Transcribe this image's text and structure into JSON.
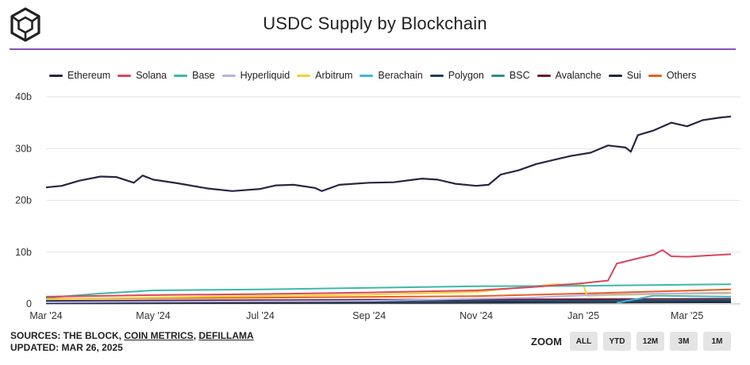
{
  "header": {
    "title": "USDC Supply by Blockchain"
  },
  "footer": {
    "sources_prefix": "SOURCES: THE BLOCK, ",
    "source_coinmetrics": "COIN METRICS",
    "source_sep": ", ",
    "source_defillama": "DEFILLAMA",
    "updated": "UPDATED: MAR 26, 2025"
  },
  "zoom": {
    "label": "ZOOM",
    "buttons": [
      "ALL",
      "YTD",
      "12M",
      "3M",
      "1M"
    ]
  },
  "chart_data": {
    "type": "line",
    "title": "USDC Supply by Blockchain",
    "xlabel": "",
    "ylabel": "",
    "x_ticks": [
      "Mar '24",
      "May '24",
      "Jul '24",
      "Sep '24",
      "Nov '24",
      "Jan '25",
      "Mar '25"
    ],
    "y_ticks": [
      "0",
      "10b",
      "20b",
      "30b",
      "40b"
    ],
    "ylim": [
      0,
      40
    ],
    "xlim": [
      "2024-03-01",
      "2025-03-26"
    ],
    "grid": true,
    "legend_position": "top",
    "series": [
      {
        "name": "Ethereum",
        "color": "#262645",
        "points": [
          [
            "2024-03-01",
            22.5
          ],
          [
            "2024-03-10",
            22.8
          ],
          [
            "2024-03-20",
            23.8
          ],
          [
            "2024-04-01",
            24.6
          ],
          [
            "2024-04-10",
            24.5
          ],
          [
            "2024-04-20",
            23.4
          ],
          [
            "2024-04-25",
            24.8
          ],
          [
            "2024-05-01",
            24.0
          ],
          [
            "2024-05-15",
            23.3
          ],
          [
            "2024-06-01",
            22.3
          ],
          [
            "2024-06-15",
            21.8
          ],
          [
            "2024-07-01",
            22.2
          ],
          [
            "2024-07-10",
            22.9
          ],
          [
            "2024-07-20",
            23.0
          ],
          [
            "2024-08-01",
            22.4
          ],
          [
            "2024-08-05",
            21.8
          ],
          [
            "2024-08-15",
            23.0
          ],
          [
            "2024-09-01",
            23.4
          ],
          [
            "2024-09-15",
            23.5
          ],
          [
            "2024-10-01",
            24.2
          ],
          [
            "2024-10-10",
            24.0
          ],
          [
            "2024-10-20",
            23.2
          ],
          [
            "2024-11-01",
            22.8
          ],
          [
            "2024-11-08",
            23.0
          ],
          [
            "2024-11-15",
            25.0
          ],
          [
            "2024-11-25",
            25.8
          ],
          [
            "2024-12-05",
            27.0
          ],
          [
            "2024-12-15",
            27.8
          ],
          [
            "2024-12-25",
            28.6
          ],
          [
            "2025-01-05",
            29.2
          ],
          [
            "2025-01-15",
            30.6
          ],
          [
            "2025-01-25",
            30.2
          ],
          [
            "2025-01-28",
            29.4
          ],
          [
            "2025-02-01",
            32.6
          ],
          [
            "2025-02-10",
            33.5
          ],
          [
            "2025-02-20",
            35.0
          ],
          [
            "2025-03-01",
            34.3
          ],
          [
            "2025-03-10",
            35.5
          ],
          [
            "2025-03-20",
            36.0
          ],
          [
            "2025-03-26",
            36.2
          ]
        ]
      },
      {
        "name": "Solana",
        "color": "#d9455f",
        "points": [
          [
            "2024-03-01",
            1.4
          ],
          [
            "2024-05-01",
            1.7
          ],
          [
            "2024-07-01",
            1.9
          ],
          [
            "2024-09-01",
            2.2
          ],
          [
            "2024-11-01",
            2.6
          ],
          [
            "2024-12-01",
            3.2
          ],
          [
            "2025-01-01",
            4.0
          ],
          [
            "2025-01-15",
            4.5
          ],
          [
            "2025-01-20",
            7.8
          ],
          [
            "2025-02-01",
            8.8
          ],
          [
            "2025-02-10",
            9.5
          ],
          [
            "2025-02-15",
            10.4
          ],
          [
            "2025-02-20",
            9.2
          ],
          [
            "2025-03-01",
            9.1
          ],
          [
            "2025-03-15",
            9.4
          ],
          [
            "2025-03-26",
            9.6
          ]
        ]
      },
      {
        "name": "Base",
        "color": "#3bb9a8",
        "points": [
          [
            "2024-03-01",
            1.2
          ],
          [
            "2024-04-01",
            2.0
          ],
          [
            "2024-05-01",
            2.6
          ],
          [
            "2024-07-01",
            2.8
          ],
          [
            "2024-09-01",
            3.1
          ],
          [
            "2024-11-01",
            3.4
          ],
          [
            "2025-01-01",
            3.5
          ],
          [
            "2025-03-26",
            3.8
          ]
        ]
      },
      {
        "name": "Hyperliquid",
        "color": "#b7aee8",
        "points": [
          [
            "2024-03-01",
            0.3
          ],
          [
            "2024-09-01",
            0.6
          ],
          [
            "2024-12-01",
            1.2
          ],
          [
            "2025-01-10",
            1.8
          ],
          [
            "2025-03-26",
            2.2
          ]
        ]
      },
      {
        "name": "Arbitrum",
        "color": "#f2d230",
        "points": [
          [
            "2024-03-01",
            0.9
          ],
          [
            "2024-06-01",
            1.4
          ],
          [
            "2024-09-01",
            1.8
          ],
          [
            "2024-11-01",
            2.3
          ],
          [
            "2024-12-15",
            3.8
          ],
          [
            "2025-01-01",
            3.6
          ],
          [
            "2025-01-03",
            1.6
          ],
          [
            "2025-02-15",
            1.9
          ],
          [
            "2025-03-26",
            2.0
          ]
        ]
      },
      {
        "name": "Berachain",
        "color": "#3fb7d9",
        "points": [
          [
            "2025-01-20",
            0.2
          ],
          [
            "2025-02-10",
            1.6
          ],
          [
            "2025-03-26",
            1.4
          ]
        ]
      },
      {
        "name": "Polygon",
        "color": "#1c3f63",
        "points": [
          [
            "2024-03-01",
            0.5
          ],
          [
            "2024-09-01",
            0.5
          ],
          [
            "2025-03-26",
            0.6
          ]
        ]
      },
      {
        "name": "BSC",
        "color": "#2e8c8c",
        "points": [
          [
            "2024-03-01",
            0.4
          ],
          [
            "2024-09-01",
            0.5
          ],
          [
            "2025-03-26",
            0.7
          ]
        ]
      },
      {
        "name": "Avalanche",
        "color": "#6a1a36",
        "points": [
          [
            "2024-03-01",
            0.6
          ],
          [
            "2024-09-01",
            0.8
          ],
          [
            "2025-03-26",
            1.0
          ]
        ]
      },
      {
        "name": "Sui",
        "color": "#1f2a3a",
        "points": [
          [
            "2024-03-01",
            0.1
          ],
          [
            "2024-10-01",
            0.2
          ],
          [
            "2025-03-26",
            0.3
          ]
        ]
      },
      {
        "name": "Others",
        "color": "#e5611f",
        "points": [
          [
            "2024-03-01",
            1.0
          ],
          [
            "2024-07-01",
            1.2
          ],
          [
            "2024-11-01",
            1.5
          ],
          [
            "2025-01-01",
            2.0
          ],
          [
            "2025-03-26",
            2.8
          ]
        ]
      }
    ]
  }
}
